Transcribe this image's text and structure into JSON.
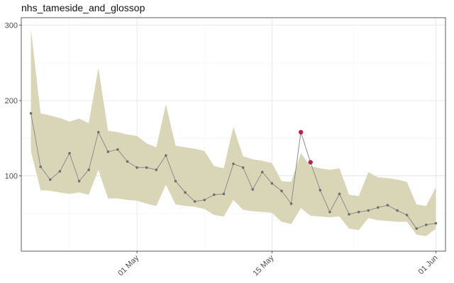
{
  "chart_data": {
    "type": "line",
    "title": "nhs_tameside_and_glossop",
    "xlabel": "",
    "ylabel": "",
    "x_ticks": [
      {
        "date": "2020-05-01",
        "label": "01 May"
      },
      {
        "date": "2020-05-15",
        "label": "15 May"
      },
      {
        "date": "2020-06-01",
        "label": "01 Jun"
      }
    ],
    "y_ticks": [
      100,
      200,
      300
    ],
    "xlim": [
      "2020-04-19",
      "2020-06-02"
    ],
    "ylim": [
      0,
      310
    ],
    "grid": true,
    "legend": "none",
    "colors": {
      "band": "#d9d6b8",
      "line": "#8c8c8c",
      "point": "#6e6e6e",
      "anomaly": "#c0214a",
      "grid_major": "#e3e3e3",
      "grid_minor": "#f1f1f1",
      "axis": "#333333"
    },
    "series": [
      {
        "values": [
          {
            "x": "2020-04-20",
            "y": 183,
            "lo": 133,
            "hi": 295
          },
          {
            "x": "2020-04-21",
            "y": 112,
            "lo": 81,
            "hi": 183
          },
          {
            "x": "2020-04-22",
            "y": 95,
            "lo": 80,
            "hi": 180
          },
          {
            "x": "2020-04-23",
            "y": 106,
            "lo": 78,
            "hi": 177
          },
          {
            "x": "2020-04-24",
            "y": 130,
            "lo": 76,
            "hi": 172
          },
          {
            "x": "2020-04-25",
            "y": 93,
            "lo": 78,
            "hi": 176
          },
          {
            "x": "2020-04-26",
            "y": 108,
            "lo": 75,
            "hi": 170
          },
          {
            "x": "2020-04-27",
            "y": 158,
            "lo": 108,
            "hi": 243
          },
          {
            "x": "2020-04-28",
            "y": 132,
            "lo": 70,
            "hi": 160
          },
          {
            "x": "2020-04-29",
            "y": 135,
            "lo": 70,
            "hi": 158
          },
          {
            "x": "2020-04-30",
            "y": 119,
            "lo": 68,
            "hi": 155
          },
          {
            "x": "2020-05-01",
            "y": 111,
            "lo": 67,
            "hi": 153
          },
          {
            "x": "2020-05-02",
            "y": 111,
            "lo": 63,
            "hi": 143
          },
          {
            "x": "2020-05-03",
            "y": 108,
            "lo": 60,
            "hi": 138
          },
          {
            "x": "2020-05-04",
            "y": 127,
            "lo": 88,
            "hi": 195
          },
          {
            "x": "2020-05-05",
            "y": 93,
            "lo": 62,
            "hi": 140
          },
          {
            "x": "2020-05-06",
            "y": 78,
            "lo": 60,
            "hi": 138
          },
          {
            "x": "2020-05-07",
            "y": 66,
            "lo": 59,
            "hi": 136
          },
          {
            "x": "2020-05-08",
            "y": 68,
            "lo": 56,
            "hi": 133
          },
          {
            "x": "2020-05-09",
            "y": 75,
            "lo": 48,
            "hi": 113
          },
          {
            "x": "2020-05-10",
            "y": 76,
            "lo": 46,
            "hi": 110
          },
          {
            "x": "2020-05-11",
            "y": 116,
            "lo": 68,
            "hi": 165
          },
          {
            "x": "2020-05-12",
            "y": 111,
            "lo": 55,
            "hi": 126
          },
          {
            "x": "2020-05-13",
            "y": 82,
            "lo": 53,
            "hi": 122
          },
          {
            "x": "2020-05-14",
            "y": 105,
            "lo": 52,
            "hi": 120
          },
          {
            "x": "2020-05-15",
            "y": 90,
            "lo": 51,
            "hi": 117
          },
          {
            "x": "2020-05-16",
            "y": 80,
            "lo": 39,
            "hi": 93
          },
          {
            "x": "2020-05-17",
            "y": 63,
            "lo": 36,
            "hi": 92
          },
          {
            "x": "2020-05-18",
            "y": 158,
            "lo": 57,
            "hi": 130,
            "anomaly": true
          },
          {
            "x": "2020-05-19",
            "y": 118,
            "lo": 47,
            "hi": 113,
            "anomaly": true
          },
          {
            "x": "2020-05-20",
            "y": 81,
            "lo": 46,
            "hi": 110
          },
          {
            "x": "2020-05-21",
            "y": 52,
            "lo": 45,
            "hi": 108
          },
          {
            "x": "2020-05-22",
            "y": 76,
            "lo": 46,
            "hi": 110
          },
          {
            "x": "2020-05-23",
            "y": 49,
            "lo": 30,
            "hi": 75
          },
          {
            "x": "2020-05-24",
            "y": 52,
            "lo": 28,
            "hi": 73
          },
          {
            "x": "2020-05-25",
            "y": 54,
            "lo": 44,
            "hi": 105
          },
          {
            "x": "2020-05-26",
            "y": 58,
            "lo": 41,
            "hi": 98
          },
          {
            "x": "2020-05-27",
            "y": 61,
            "lo": 40,
            "hi": 97
          },
          {
            "x": "2020-05-28",
            "y": 54,
            "lo": 39,
            "hi": 95
          },
          {
            "x": "2020-05-29",
            "y": 48,
            "lo": 39,
            "hi": 92
          },
          {
            "x": "2020-05-30",
            "y": 30,
            "lo": 22,
            "hi": 62
          },
          {
            "x": "2020-05-31",
            "y": 35,
            "lo": 20,
            "hi": 60
          },
          {
            "x": "2020-06-01",
            "y": 37,
            "lo": 30,
            "hi": 85
          }
        ]
      }
    ]
  }
}
